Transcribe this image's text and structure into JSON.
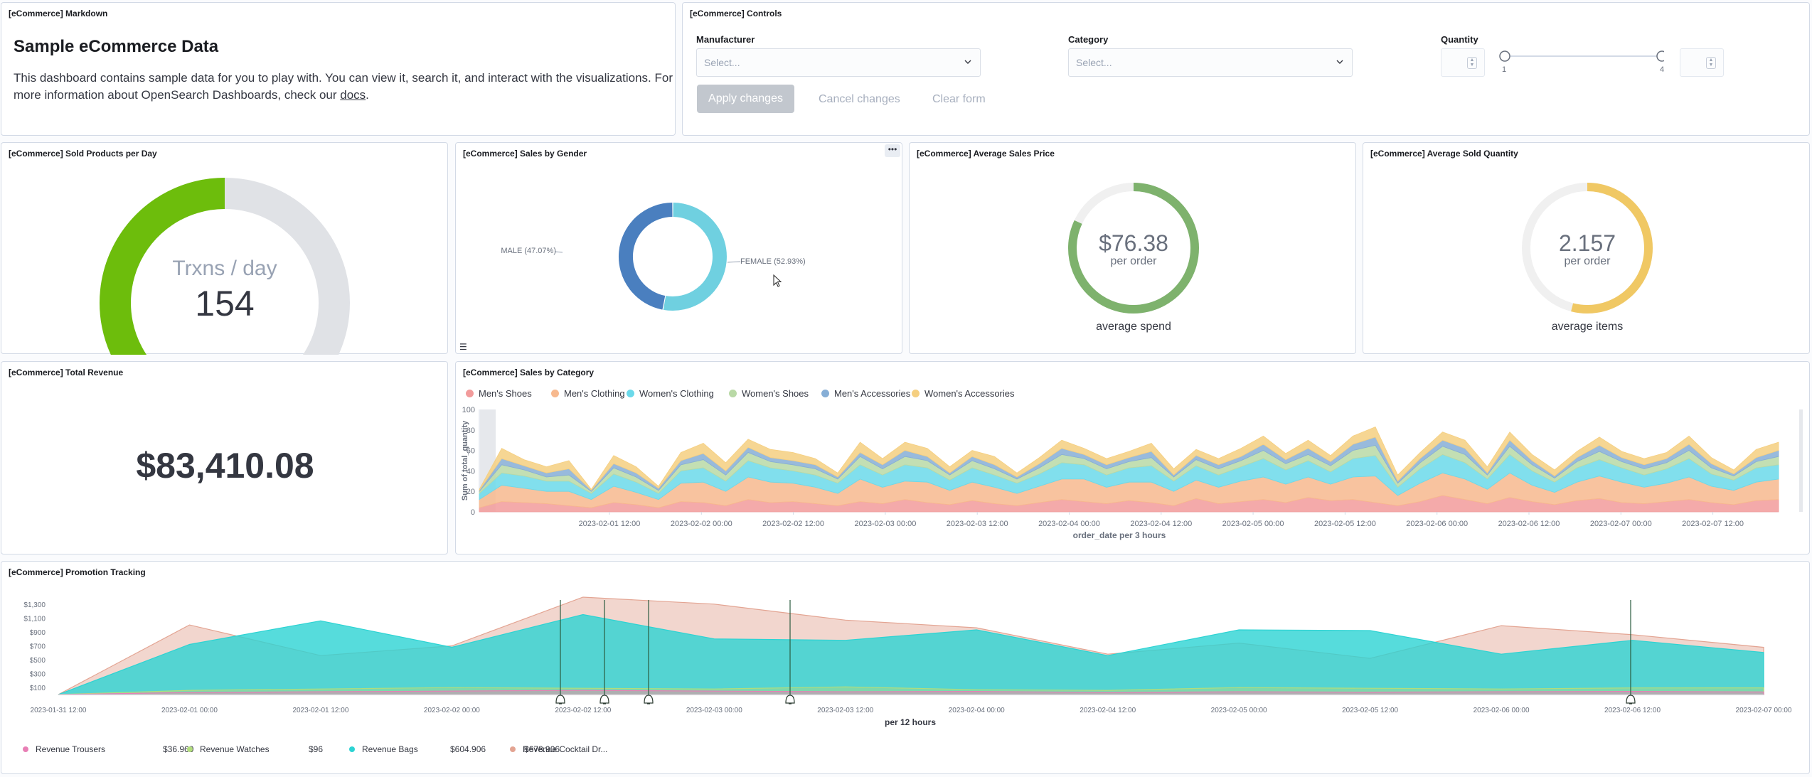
{
  "markdown": {
    "title": "[eCommerce] Markdown",
    "heading": "Sample eCommerce Data",
    "text_before_link": "This dashboard contains sample data for you to play with. You can view it, search it, and interact with the visualizations. For more information about OpenSearch Dashboards, check our ",
    "link": "docs",
    "text_after_link": "."
  },
  "controls": {
    "title": "[eCommerce] Controls",
    "manufacturer_label": "Manufacturer",
    "manufacturer_placeholder": "Select...",
    "category_label": "Category",
    "category_placeholder": "Select...",
    "quantity_label": "Quantity",
    "quantity_min": "1",
    "quantity_max": "4",
    "apply_label": "Apply changes",
    "cancel_label": "Cancel changes",
    "clear_label": "Clear form"
  },
  "sold_per_day": {
    "title": "[eCommerce] Sold Products per Day",
    "label": "Trxns / day",
    "value": "154",
    "gauge_fraction": 0.5,
    "color": "#6dbd0c"
  },
  "sales_by_gender": {
    "title": "[eCommerce] Sales by Gender",
    "male_label": "MALE (47.07%)",
    "female_label": "FEMALE (52.93%)",
    "male_pct": 47.07,
    "female_pct": 52.93,
    "male_color": "#4a7fbf",
    "female_color": "#6fd0e0"
  },
  "avg_sales_price": {
    "title": "[eCommerce] Average Sales Price",
    "value": "$76.38",
    "unit": "per order",
    "caption": "average spend",
    "fraction": 0.82,
    "color": "#7eb26d"
  },
  "avg_sold_quantity": {
    "title": "[eCommerce] Average Sold Quantity",
    "value": "2.157",
    "unit": "per order",
    "caption": "average items",
    "fraction": 0.54,
    "color": "#f0c864"
  },
  "total_revenue": {
    "title": "[eCommerce] Total Revenue",
    "value": "$83,410.08"
  },
  "sales_by_category": {
    "title": "[eCommerce] Sales by Category",
    "legend": [
      {
        "name": "Men's Shoes",
        "color": "#f29b9b"
      },
      {
        "name": "Men's Clothing",
        "color": "#f7b98e"
      },
      {
        "name": "Women's Clothing",
        "color": "#6bd9ea"
      },
      {
        "name": "Women's Shoes",
        "color": "#b9d9a6"
      },
      {
        "name": "Men's Accessories",
        "color": "#86aed6"
      },
      {
        "name": "Women's Accessories",
        "color": "#f5cf80"
      }
    ],
    "ylabel": "Sum of total_quantity",
    "xlabel": "order_date per 3 hours",
    "yticks": [
      "100",
      "80",
      "60",
      "40",
      "20",
      "0"
    ],
    "xticks": [
      "2023-02-01 12:00",
      "2023-02-02 00:00",
      "2023-02-02 12:00",
      "2023-02-03 00:00",
      "2023-02-03 12:00",
      "2023-02-04 00:00",
      "2023-02-04 12:00",
      "2023-02-05 00:00",
      "2023-02-05 12:00",
      "2023-02-06 00:00",
      "2023-02-06 12:00",
      "2023-02-07 00:00",
      "2023-02-07 12:00"
    ]
  },
  "promotion": {
    "title": "[eCommerce] Promotion Tracking",
    "xlabel": "per 12 hours",
    "yticks": [
      "$1,300",
      "$1,100",
      "$900",
      "$700",
      "$500",
      "$300",
      "$100"
    ],
    "xticks": [
      "2023-01-31 12:00",
      "2023-02-01 00:00",
      "2023-02-01 12:00",
      "2023-02-02 00:00",
      "2023-02-02 12:00",
      "2023-02-03 00:00",
      "2023-02-03 12:00",
      "2023-02-04 00:00",
      "2023-02-04 12:00",
      "2023-02-05 00:00",
      "2023-02-05 12:00",
      "2023-02-06 00:00",
      "2023-02-06 12:00",
      "2023-02-07 00:00"
    ],
    "legend": [
      {
        "name": "Revenue Trousers",
        "value": "$36.969",
        "color": "#e87fb5"
      },
      {
        "name": "Revenue Watches",
        "value": "$96",
        "color": "#b2dd7c"
      },
      {
        "name": "Revenue Bags",
        "value": "$604.906",
        "color": "#2cd3d3"
      },
      {
        "name": "Revenue Cocktail Dr...",
        "value": "$678.906",
        "color": "#e3a492"
      }
    ]
  },
  "chart_data": [
    {
      "type": "area",
      "title": "[eCommerce] Sales by Category",
      "xlabel": "order_date per 3 hours",
      "ylabel": "Sum of total_quantity",
      "ylim": [
        0,
        100
      ],
      "stacked": true,
      "x": [
        "2023-01-31 12:00",
        "2023-01-31 15:00",
        "2023-01-31 18:00",
        "2023-01-31 21:00",
        "2023-02-01 00:00",
        "2023-02-01 03:00",
        "2023-02-01 06:00",
        "2023-02-01 09:00",
        "2023-02-01 12:00",
        "2023-02-01 15:00",
        "2023-02-01 18:00",
        "2023-02-01 21:00",
        "2023-02-02 00:00",
        "2023-02-02 03:00",
        "2023-02-02 06:00",
        "2023-02-02 09:00",
        "2023-02-02 12:00",
        "2023-02-02 15:00",
        "2023-02-02 18:00",
        "2023-02-02 21:00",
        "2023-02-03 00:00",
        "2023-02-03 03:00",
        "2023-02-03 06:00",
        "2023-02-03 09:00",
        "2023-02-03 12:00",
        "2023-02-03 15:00",
        "2023-02-03 18:00",
        "2023-02-03 21:00",
        "2023-02-04 00:00",
        "2023-02-04 03:00",
        "2023-02-04 06:00",
        "2023-02-04 09:00",
        "2023-02-04 12:00",
        "2023-02-04 15:00",
        "2023-02-04 18:00",
        "2023-02-04 21:00",
        "2023-02-05 00:00",
        "2023-02-05 03:00",
        "2023-02-05 06:00",
        "2023-02-05 09:00",
        "2023-02-05 12:00",
        "2023-02-05 15:00",
        "2023-02-05 18:00",
        "2023-02-05 21:00",
        "2023-02-06 00:00",
        "2023-02-06 03:00",
        "2023-02-06 06:00",
        "2023-02-06 09:00",
        "2023-02-06 12:00",
        "2023-02-06 15:00",
        "2023-02-06 18:00",
        "2023-02-06 21:00",
        "2023-02-07 00:00",
        "2023-02-07 03:00",
        "2023-02-07 06:00",
        "2023-02-07 09:00",
        "2023-02-07 12:00",
        "2023-02-07 15:00",
        "2023-02-07 18:00"
      ],
      "series": [
        {
          "name": "Men's Shoes",
          "values": [
            4,
            10,
            9,
            8,
            6,
            4,
            9,
            7,
            4,
            10,
            9,
            6,
            12,
            9,
            10,
            8,
            6,
            10,
            8,
            12,
            9,
            7,
            11,
            8,
            6,
            9,
            12,
            10,
            8,
            11,
            9,
            6,
            13,
            8,
            10,
            12,
            9,
            14,
            11,
            12,
            9,
            6,
            10,
            16,
            12,
            8,
            14,
            10,
            7,
            11,
            13,
            9,
            8,
            10,
            12,
            9,
            7,
            11,
            12
          ]
        },
        {
          "name": "Men's Clothing",
          "values": [
            8,
            16,
            14,
            12,
            14,
            8,
            16,
            12,
            8,
            18,
            20,
            14,
            22,
            20,
            18,
            16,
            12,
            22,
            16,
            18,
            20,
            14,
            18,
            16,
            12,
            16,
            20,
            22,
            16,
            18,
            20,
            14,
            18,
            16,
            20,
            22,
            18,
            20,
            16,
            22,
            26,
            10,
            18,
            22,
            20,
            14,
            24,
            16,
            12,
            18,
            22,
            20,
            16,
            18,
            22,
            16,
            14,
            18,
            20
          ]
        },
        {
          "name": "Women's Clothing",
          "values": [
            6,
            12,
            12,
            10,
            10,
            6,
            12,
            10,
            6,
            12,
            14,
            10,
            16,
            14,
            12,
            12,
            10,
            14,
            12,
            16,
            14,
            10,
            14,
            12,
            10,
            12,
            16,
            14,
            12,
            14,
            16,
            10,
            14,
            12,
            14,
            18,
            14,
            16,
            12,
            18,
            20,
            8,
            14,
            18,
            16,
            10,
            18,
            14,
            10,
            14,
            16,
            14,
            12,
            14,
            18,
            12,
            10,
            14,
            14
          ]
        },
        {
          "name": "Women's Shoes",
          "values": [
            2,
            8,
            6,
            4,
            6,
            2,
            6,
            5,
            3,
            6,
            8,
            6,
            8,
            6,
            6,
            6,
            4,
            8,
            6,
            8,
            7,
            5,
            7,
            6,
            4,
            6,
            8,
            6,
            6,
            6,
            8,
            4,
            6,
            6,
            6,
            8,
            6,
            6,
            6,
            8,
            10,
            4,
            6,
            8,
            8,
            4,
            8,
            6,
            4,
            6,
            8,
            6,
            6,
            6,
            8,
            6,
            4,
            6,
            8
          ]
        },
        {
          "name": "Men's Accessories",
          "values": [
            1,
            6,
            4,
            4,
            6,
            1,
            4,
            4,
            2,
            4,
            6,
            4,
            5,
            4,
            4,
            4,
            2,
            4,
            4,
            6,
            4,
            2,
            4,
            4,
            2,
            4,
            6,
            4,
            4,
            4,
            6,
            2,
            4,
            4,
            4,
            6,
            4,
            6,
            4,
            6,
            8,
            2,
            4,
            6,
            6,
            2,
            6,
            4,
            2,
            4,
            6,
            4,
            4,
            4,
            6,
            4,
            2,
            4,
            6
          ]
        },
        {
          "name": "Women's Accessories",
          "values": [
            1,
            10,
            6,
            6,
            8,
            1,
            8,
            6,
            2,
            8,
            10,
            8,
            8,
            8,
            8,
            6,
            4,
            10,
            6,
            8,
            8,
            6,
            6,
            8,
            4,
            6,
            8,
            6,
            6,
            6,
            8,
            6,
            6,
            6,
            8,
            8,
            6,
            8,
            6,
            8,
            10,
            6,
            6,
            8,
            8,
            6,
            8,
            6,
            6,
            6,
            8,
            6,
            6,
            6,
            8,
            6,
            4,
            8,
            8
          ]
        }
      ]
    },
    {
      "type": "area",
      "title": "[eCommerce] Promotion Tracking",
      "xlabel": "per 12 hours",
      "ylim": [
        0,
        1400
      ],
      "x": [
        "2023-01-31 12:00",
        "2023-02-01 00:00",
        "2023-02-01 12:00",
        "2023-02-02 00:00",
        "2023-02-02 12:00",
        "2023-02-03 00:00",
        "2023-02-03 12:00",
        "2023-02-04 00:00",
        "2023-02-04 12:00",
        "2023-02-05 00:00",
        "2023-02-05 12:00",
        "2023-02-06 00:00",
        "2023-02-06 12:00",
        "2023-02-07 00:00"
      ],
      "series": [
        {
          "name": "Revenue Trousers",
          "values": [
            0,
            30,
            40,
            50,
            60,
            50,
            40,
            45,
            30,
            40,
            35,
            40,
            45,
            37
          ]
        },
        {
          "name": "Revenue Watches",
          "values": [
            0,
            60,
            80,
            100,
            90,
            80,
            110,
            70,
            60,
            100,
            90,
            80,
            95,
            96
          ]
        },
        {
          "name": "Revenue Bags",
          "values": [
            0,
            720,
            1060,
            680,
            1150,
            800,
            780,
            930,
            560,
            930,
            920,
            580,
            780,
            605
          ]
        },
        {
          "name": "Revenue Cocktail Dr...",
          "values": [
            0,
            1000,
            560,
            700,
            1400,
            1300,
            1070,
            960,
            580,
            740,
            520,
            990,
            860,
            679
          ]
        }
      ]
    }
  ]
}
